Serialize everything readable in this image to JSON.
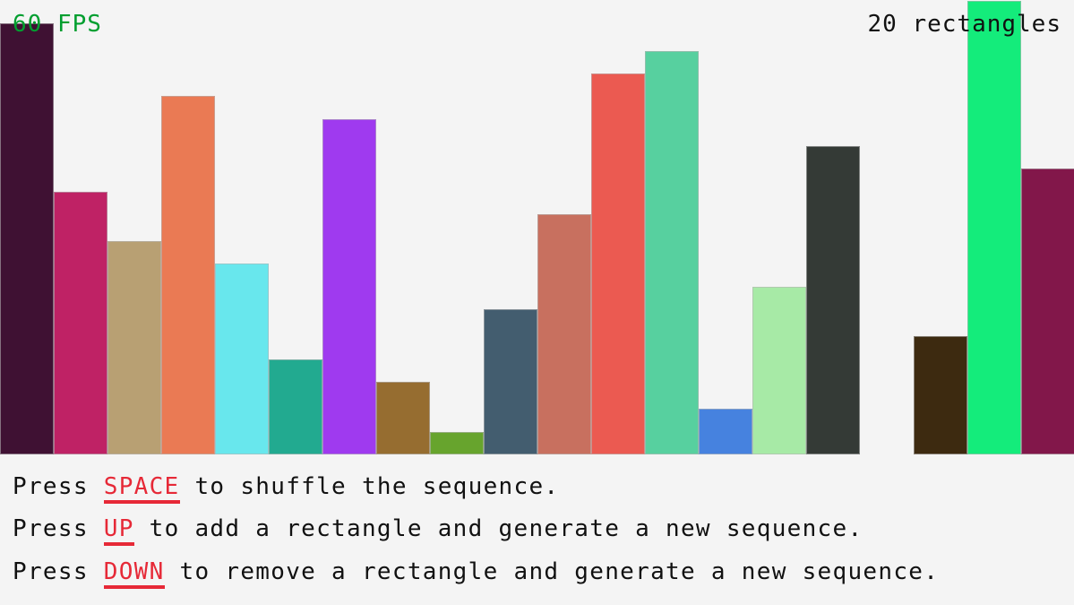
{
  "fps_label": "60 FPS",
  "count_label": "20 rectangles",
  "chart_data": {
    "type": "bar",
    "values": [
      0.95,
      0.58,
      0.47,
      0.79,
      0.42,
      0.21,
      0.74,
      0.16,
      0.05,
      0.32,
      0.53,
      0.84,
      0.89,
      0.1,
      0.37,
      0.68,
      0.0,
      0.26,
      1.0,
      0.63
    ],
    "colors": [
      "#3f1133",
      "#bf2265",
      "#b8a073",
      "#ea7a54",
      "#68e7ed",
      "#22aa90",
      "#9f3aef",
      "#966d30",
      "#67a42d",
      "#435d6f",
      "#c8705f",
      "#eb5a51",
      "#57d09f",
      "#4682df",
      "#a7eaa6",
      "#343a36",
      "#f4f4f4",
      "#3d2a10",
      "#14ec7b",
      "#82174a"
    ]
  },
  "instructions": [
    {
      "prefix": "Press ",
      "key": "SPACE",
      "suffix": " to shuffle the sequence."
    },
    {
      "prefix": "Press ",
      "key": "UP",
      "suffix": " to add a rectangle and generate a new sequence."
    },
    {
      "prefix": "Press ",
      "key": "DOWN",
      "suffix": " to remove a rectangle and generate a new sequence."
    }
  ]
}
